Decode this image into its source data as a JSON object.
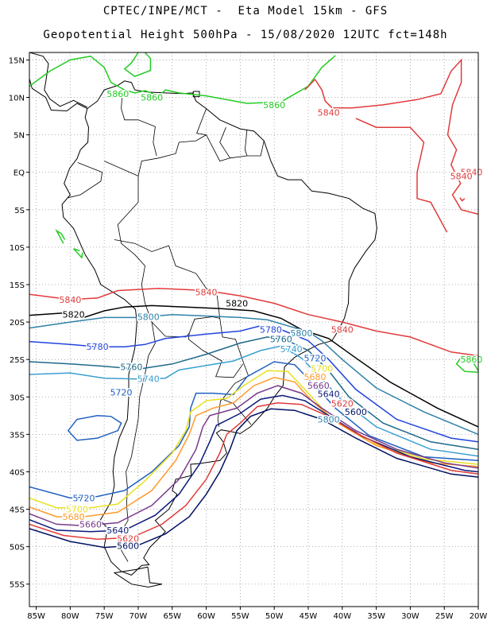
{
  "header": {
    "line1": "CPTEC/INPE/MCT -  Eta Model 15km - GFS",
    "line2": "Geopotential Height 500hPa - 15/08/2020 12UTC fct=148h"
  },
  "axes": {
    "lat_ticks": [
      "15N",
      "10N",
      "5N",
      "EQ",
      "5S",
      "10S",
      "15S",
      "20S",
      "25S",
      "30S",
      "35S",
      "40S",
      "45S",
      "50S",
      "55S"
    ],
    "lon_ticks": [
      "85W",
      "80W",
      "75W",
      "70W",
      "65W",
      "60W",
      "55W",
      "50W",
      "45W",
      "40W",
      "35W",
      "30W",
      "25W",
      "20W"
    ],
    "lat_range": [
      -58,
      16
    ],
    "lon_range": [
      -86,
      -20
    ]
  },
  "colors": {
    "c5860": "#22cc22",
    "c5840": "#e03b3b",
    "c5820": "#000000",
    "c5800": "#2f82a8",
    "c5780": "#2244dd",
    "c5760": "#1e6a8a",
    "c5740": "#3a9fd0",
    "c5720": "#2060c0",
    "c5700": "#e8e020",
    "c5680": "#ff9a2a",
    "c5660": "#7a3a8a",
    "c5640": "#0a1a7a",
    "c5620": "#e03b3b",
    "c5600": "#001060",
    "grid": "#9a9a9a",
    "land": "#000000"
  },
  "chart_data": {
    "type": "contour",
    "field": "Geopotential Height 500hPa",
    "grid": true,
    "contours": [
      {
        "value": 5860,
        "label": "5860",
        "label_at": [
          [
            -73,
            10.5
          ],
          [
            -68,
            10.0
          ],
          [
            -50,
            9.0
          ],
          [
            -21,
            -25
          ]
        ]
      },
      {
        "value": 5840,
        "label": "5840",
        "label_at": [
          [
            -42,
            8.0
          ],
          [
            -21,
            0.0
          ],
          [
            -80,
            -17
          ],
          [
            -60,
            -16
          ],
          [
            -40,
            -21
          ],
          [
            -22.5,
            -0.5
          ]
        ]
      },
      {
        "value": 5820,
        "label": "5820",
        "label_at": [
          [
            -79.5,
            -19
          ],
          [
            -55.5,
            -17.5
          ]
        ]
      },
      {
        "value": 5800,
        "label": "5800",
        "label_at": [
          [
            -68.5,
            -19.3
          ],
          [
            -46,
            -21.5
          ],
          [
            -42,
            -33
          ]
        ]
      },
      {
        "value": 5780,
        "label": "5780",
        "label_at": [
          [
            -76,
            -23.3
          ],
          [
            -50.5,
            -21
          ]
        ]
      },
      {
        "value": 5760,
        "label": "5760",
        "label_at": [
          [
            -71,
            -26.0
          ],
          [
            -49,
            -22.3
          ]
        ]
      },
      {
        "value": 5740,
        "label": "5740",
        "label_at": [
          [
            -68.5,
            -27.6
          ],
          [
            -47.5,
            -23.6
          ]
        ]
      },
      {
        "value": 5720,
        "label": "5720",
        "label_at": [
          [
            -72.5,
            -29.4
          ],
          [
            -44,
            -24.8
          ],
          [
            -78,
            -43.5
          ]
        ]
      },
      {
        "value": 5700,
        "label": "5700",
        "label_at": [
          [
            -43,
            -26.2
          ],
          [
            -79,
            -45.0
          ]
        ]
      },
      {
        "value": 5680,
        "label": "5680",
        "label_at": [
          [
            -44,
            -27.3
          ],
          [
            -79.5,
            -46.0
          ]
        ]
      },
      {
        "value": 5660,
        "label": "5660",
        "label_at": [
          [
            -43.5,
            -28.5
          ],
          [
            -77,
            -47.0
          ]
        ]
      },
      {
        "value": 5640,
        "label": "5640",
        "label_at": [
          [
            -42,
            -29.6
          ],
          [
            -73,
            -47.8
          ]
        ]
      },
      {
        "value": 5620,
        "label": "5620",
        "label_at": [
          [
            -40,
            -30.9
          ],
          [
            -71.5,
            -48.9
          ]
        ]
      },
      {
        "value": 5600,
        "label": "5600",
        "label_at": [
          [
            -38,
            -32.0
          ],
          [
            -71.5,
            -49.9
          ]
        ]
      }
    ]
  }
}
